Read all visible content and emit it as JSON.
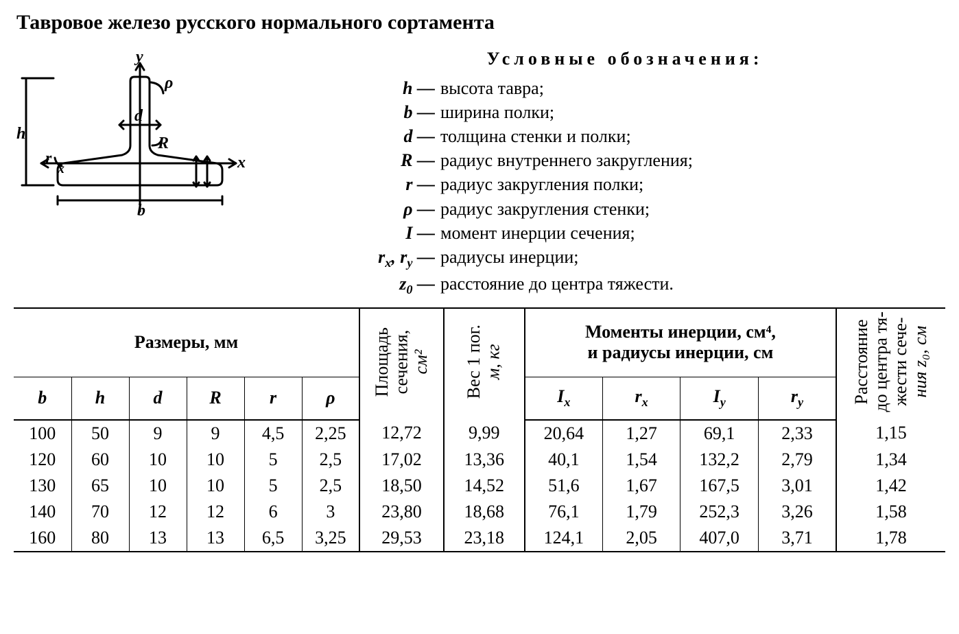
{
  "title": "Тавровое железо русского нормального сортамента",
  "legend_title": "Условные обозначения:",
  "legend": [
    {
      "sym": "h",
      "desc": "высота тавра;"
    },
    {
      "sym": "b",
      "desc": "ширина полки;"
    },
    {
      "sym": "d",
      "desc": "толщина стенки и полки;"
    },
    {
      "sym": "R",
      "desc": "радиус внутреннего закругления;"
    },
    {
      "sym": "r",
      "desc": "радиус закругления полки;"
    },
    {
      "sym": "ρ",
      "desc": "радиус закругления стенки;"
    },
    {
      "sym": "I",
      "desc": "момент инерции сечения;"
    },
    {
      "sym": "r_x, r_y",
      "desc": "радиусы инерции;"
    },
    {
      "sym": "z_0",
      "desc": "расстояние до центра тяжести."
    }
  ],
  "diagram": {
    "stroke": "#000000",
    "stroke_width": 3,
    "labels": {
      "y": "y",
      "rho": "ρ",
      "d": "d",
      "R": "R",
      "h": "h",
      "r": "r",
      "x": "x",
      "b": "b"
    }
  },
  "table": {
    "group_dim_label": "Размеры, мм",
    "group_mom_line1": "Моменты инерции, см⁴,",
    "group_mom_line2": "и радиусы инерции, см",
    "col_area_line1": "Площадь",
    "col_area_line2": "сечения,",
    "col_area_unit": "см²",
    "col_wt_line1": "Вес 1 пог.",
    "col_wt_line2": "м, кг",
    "col_z0_line1": "Расстояние",
    "col_z0_line2": "до центра тя-",
    "col_z0_line3": "жести сече-",
    "col_z0_line4": "ния z₀, см",
    "cols_dim": [
      "b",
      "h",
      "d",
      "R",
      "r",
      "ρ"
    ],
    "cols_mom": [
      "I_x",
      "r_x",
      "I_y",
      "r_y"
    ],
    "rows": [
      [
        "100",
        "50",
        "9",
        "9",
        "4,5",
        "2,25",
        "12,72",
        "9,99",
        "20,64",
        "1,27",
        "69,1",
        "2,33",
        "1,15"
      ],
      [
        "120",
        "60",
        "10",
        "10",
        "5",
        "2,5",
        "17,02",
        "13,36",
        "40,1",
        "1,54",
        "132,2",
        "2,79",
        "1,34"
      ],
      [
        "130",
        "65",
        "10",
        "10",
        "5",
        "2,5",
        "18,50",
        "14,52",
        "51,6",
        "1,67",
        "167,5",
        "3,01",
        "1,42"
      ],
      [
        "140",
        "70",
        "12",
        "12",
        "6",
        "3",
        "23,80",
        "18,68",
        "76,1",
        "1,79",
        "252,3",
        "3,26",
        "1,58"
      ],
      [
        "160",
        "80",
        "13",
        "13",
        "6,5",
        "3,25",
        "29,53",
        "23,18",
        "124,1",
        "2,05",
        "407,0",
        "3,71",
        "1,78"
      ]
    ]
  },
  "style": {
    "text_color": "#000000",
    "bg_color": "#ffffff",
    "border_thick": 2.5,
    "border_thin": 1.5,
    "title_fontsize": 30,
    "body_fontsize": 26,
    "table_fontsize": 26
  }
}
